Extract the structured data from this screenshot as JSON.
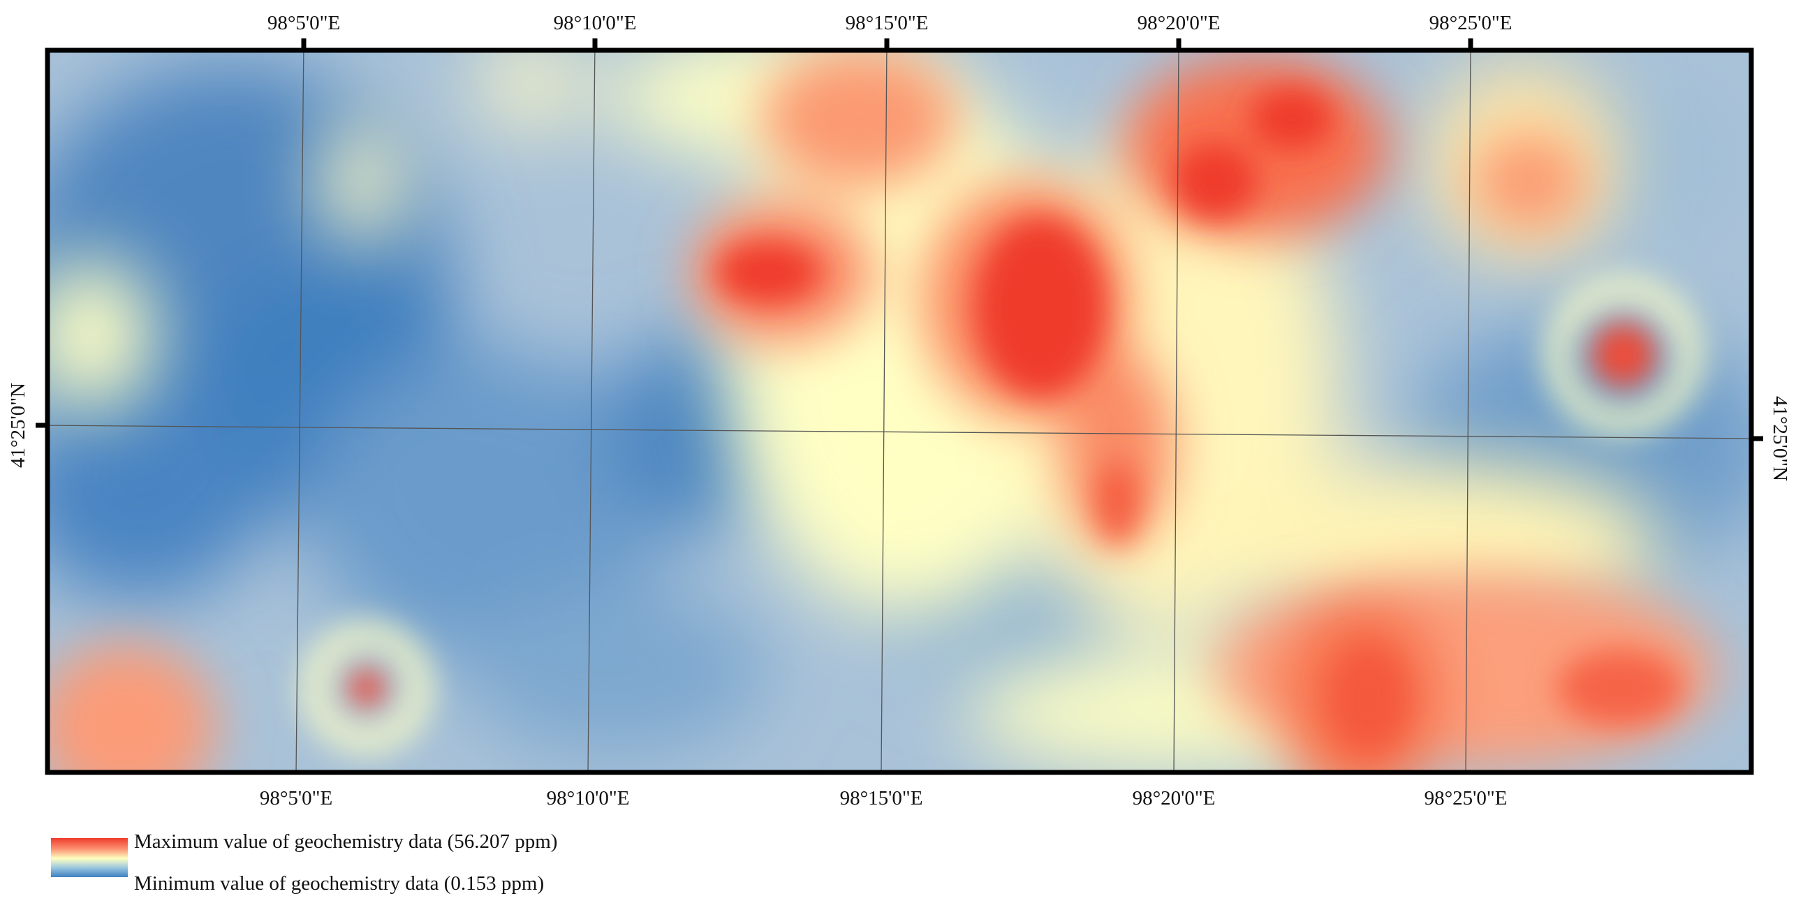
{
  "map": {
    "longitude_labels": [
      "98°5'0\"E",
      "98°10'0\"E",
      "98°15'0\"E",
      "98°20'0\"E",
      "98°25'0\"E"
    ],
    "latitude_labels": [
      "41°25'0\"N"
    ],
    "colors": {
      "high": "#ef3b2c",
      "mid_high": "#fc9272",
      "mid": "#ffffc0",
      "mid_low": "#9ecae1",
      "low": "#3d7fbf",
      "frame": "#000000",
      "graticule": "#555555"
    }
  },
  "legend": {
    "max_label": "Maximum value of geochemistry data (56.207 ppm)",
    "min_label": "Minimum value of geochemistry data (0.153 ppm)",
    "max_value": 56.207,
    "min_value": 0.153,
    "unit": "ppm"
  }
}
